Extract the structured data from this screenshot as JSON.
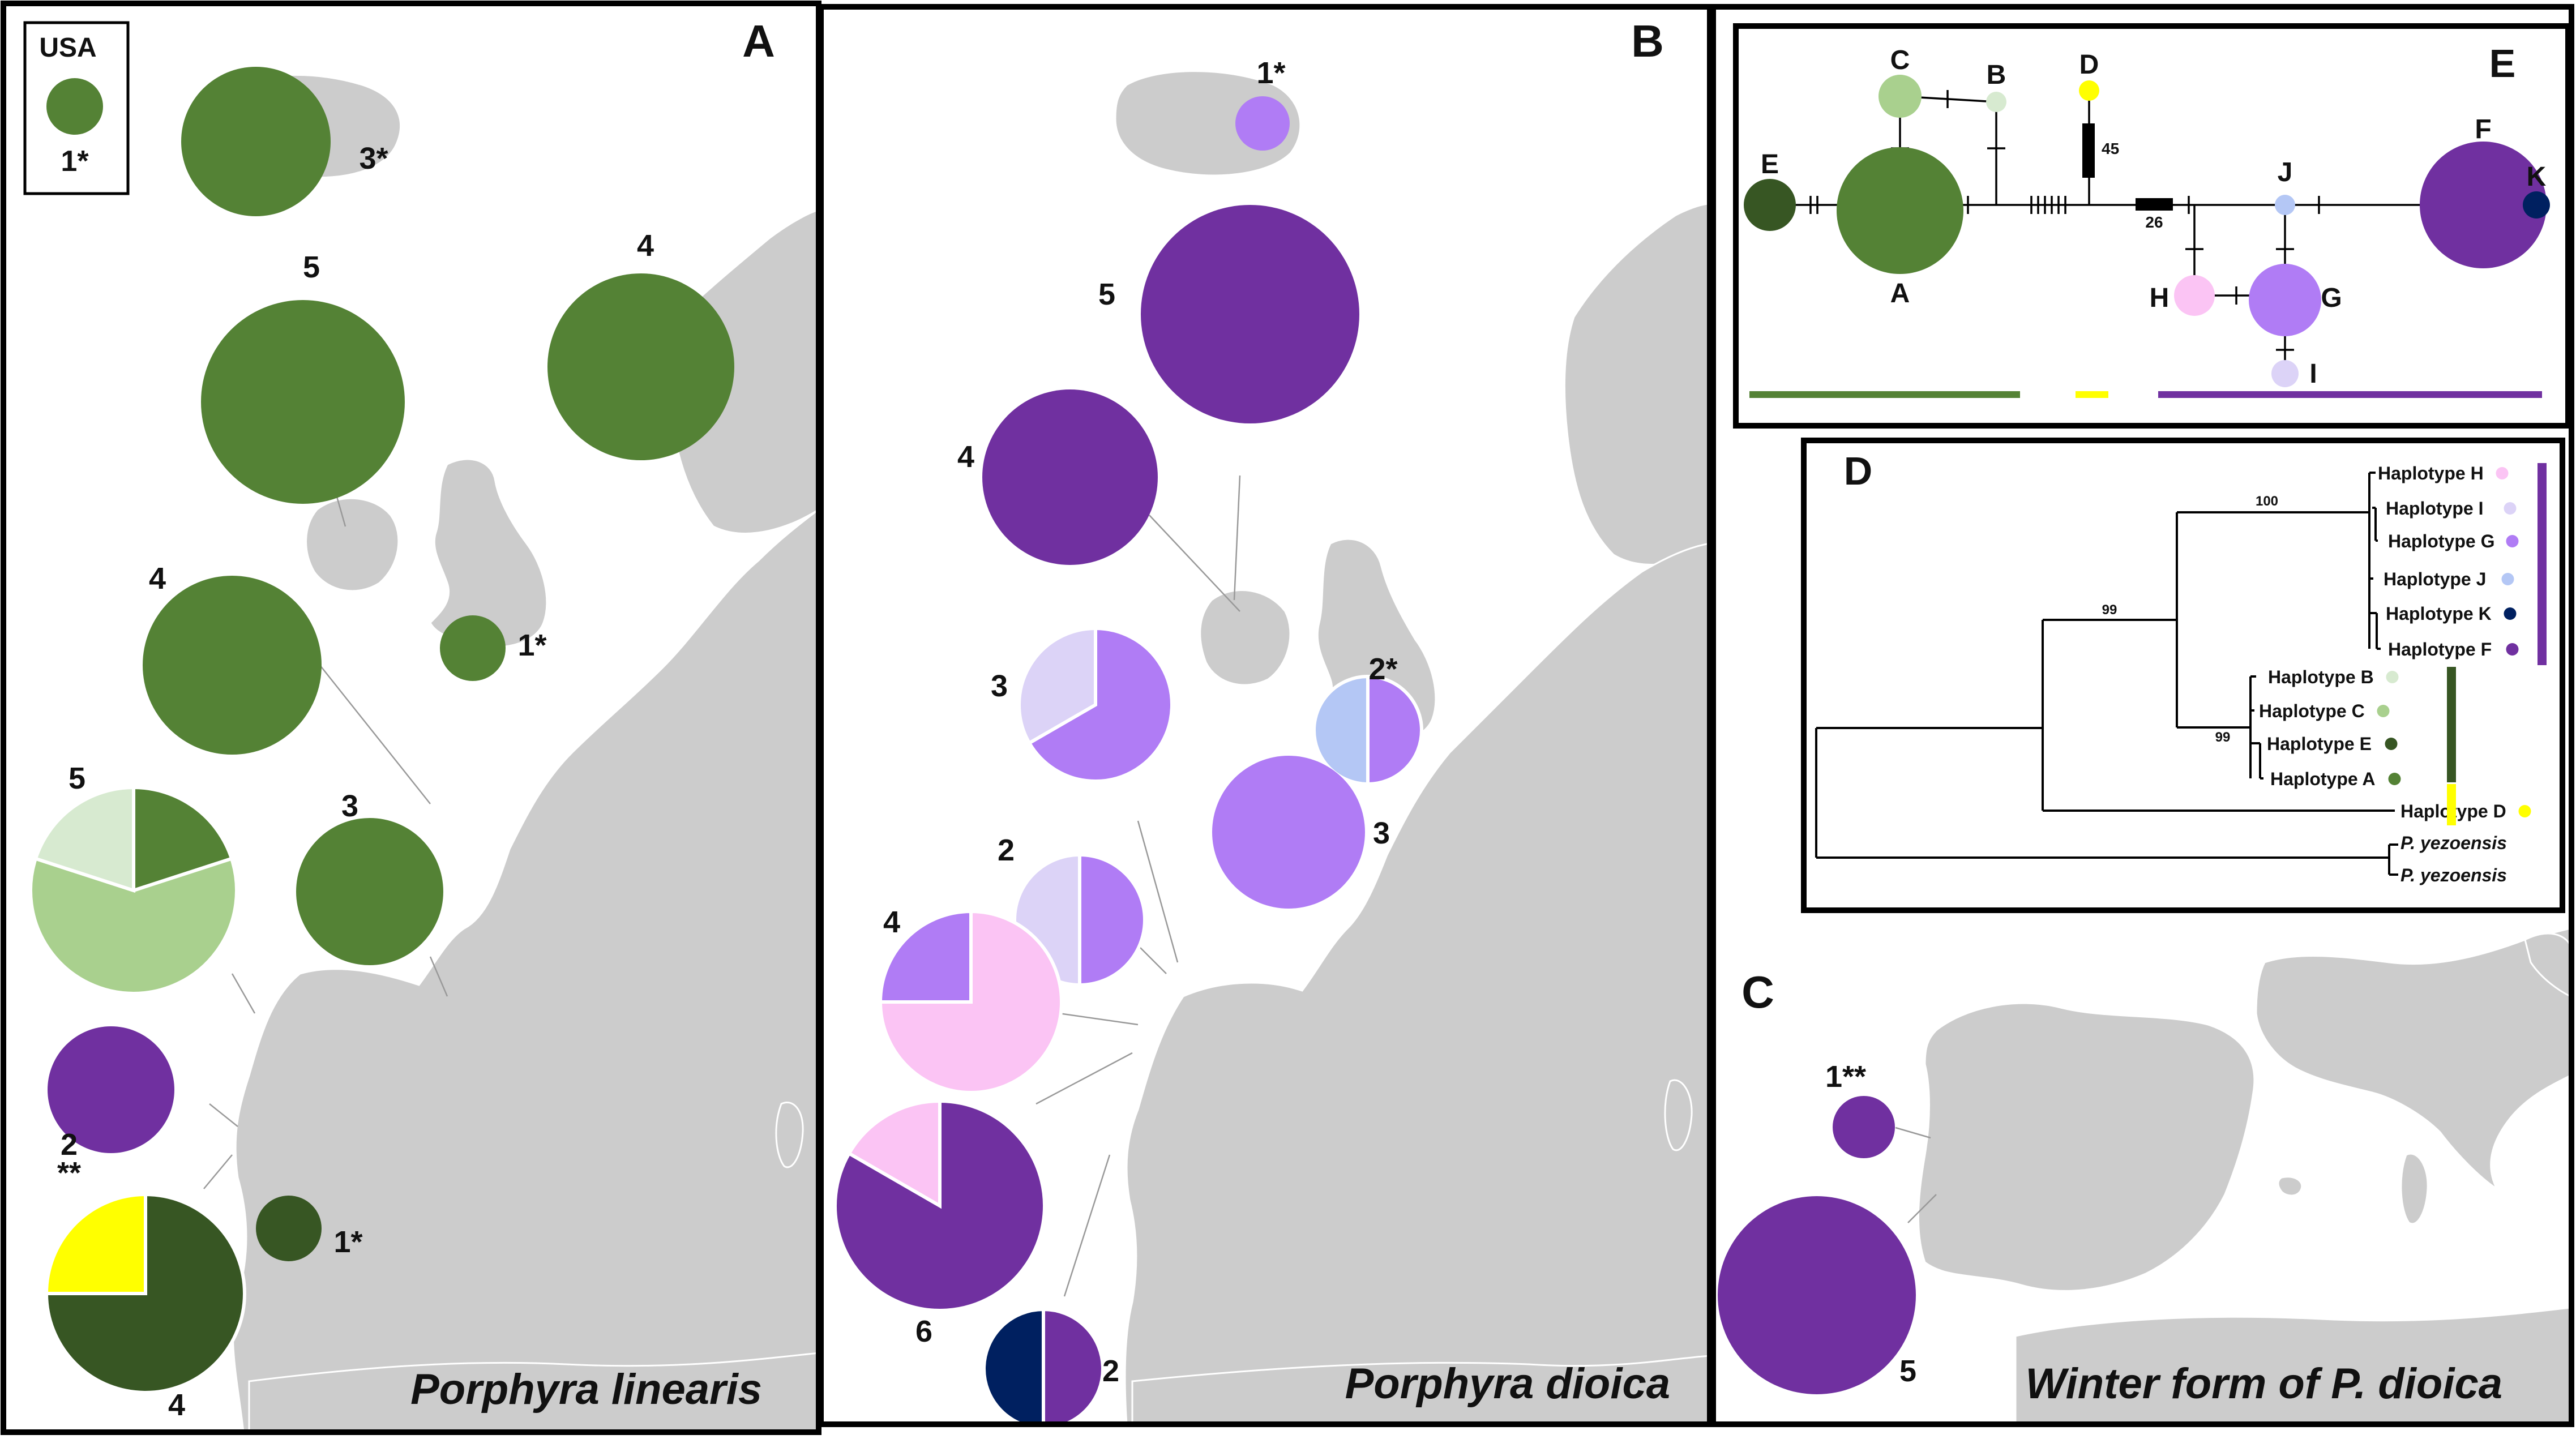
{
  "colors": {
    "A": "#548235",
    "B": "#d7ead0",
    "C": "#a9d08e",
    "D": "#ffff00",
    "E": "#375623",
    "F": "#7030a0",
    "G": "#b07cf5",
    "H": "#fbc4f4",
    "I": "#dcd3f7",
    "J": "#b4c7f5",
    "K": "#002060",
    "map": "#cccccc",
    "border": "#ffffff"
  },
  "panels": [
    {
      "letter": "A",
      "title": "Porphyra linearis"
    },
    {
      "letter": "B",
      "title": "Porphyra dioica"
    },
    {
      "letter": "C",
      "title": "Winter form of P. dioica"
    }
  ],
  "inset": {
    "title": "USA",
    "count": "1*",
    "color": "A"
  },
  "pies_a": [
    {
      "label": "3*",
      "slices": [
        {
          "h": "A",
          "v": 1
        }
      ]
    },
    {
      "label": "5",
      "slices": [
        {
          "h": "A",
          "v": 1
        }
      ]
    },
    {
      "label": "4",
      "slices": [
        {
          "h": "A",
          "v": 1
        }
      ]
    },
    {
      "label": "4",
      "slices": [
        {
          "h": "A",
          "v": 1
        }
      ]
    },
    {
      "label": "1*",
      "slices": [
        {
          "h": "A",
          "v": 1
        }
      ]
    },
    {
      "label": "5",
      "slices": [
        {
          "h": "A",
          "v": 1
        },
        {
          "h": "C",
          "v": 3
        },
        {
          "h": "B",
          "v": 1
        }
      ]
    },
    {
      "label": "3",
      "slices": [
        {
          "h": "A",
          "v": 1
        }
      ]
    },
    {
      "label": "2",
      "sublabel": "**",
      "slices": [
        {
          "h": "F",
          "v": 1
        }
      ]
    },
    {
      "label": "4",
      "slices": [
        {
          "h": "E",
          "v": 3
        },
        {
          "h": "D",
          "v": 1
        }
      ]
    },
    {
      "label": "1*",
      "slices": [
        {
          "h": "E",
          "v": 1
        }
      ]
    }
  ],
  "pies_b": [
    {
      "label": "1*",
      "slices": [
        {
          "h": "G",
          "v": 1
        }
      ]
    },
    {
      "label": "5",
      "slices": [
        {
          "h": "F",
          "v": 1
        }
      ]
    },
    {
      "label": "4",
      "slices": [
        {
          "h": "F",
          "v": 1
        }
      ]
    },
    {
      "label": "3",
      "slices": [
        {
          "h": "G",
          "v": 2
        },
        {
          "h": "I",
          "v": 1
        }
      ]
    },
    {
      "label": "2*",
      "slices": [
        {
          "h": "G",
          "v": 1
        },
        {
          "h": "J",
          "v": 1
        }
      ]
    },
    {
      "label": "3",
      "slices": [
        {
          "h": "G",
          "v": 1
        }
      ]
    },
    {
      "label": "2",
      "slices": [
        {
          "h": "G",
          "v": 1
        },
        {
          "h": "I",
          "v": 1
        }
      ]
    },
    {
      "label": "4",
      "slices": [
        {
          "h": "H",
          "v": 3
        },
        {
          "h": "G",
          "v": 1
        }
      ]
    },
    {
      "label": "6",
      "slices": [
        {
          "h": "F",
          "v": 5
        },
        {
          "h": "H",
          "v": 1
        }
      ]
    },
    {
      "label": "2",
      "slices": [
        {
          "h": "F",
          "v": 1
        },
        {
          "h": "K",
          "v": 1
        }
      ]
    }
  ],
  "pies_c": [
    {
      "label": "1**",
      "slices": [
        {
          "h": "F",
          "v": 1
        }
      ]
    },
    {
      "label": "5",
      "slices": [
        {
          "h": "F",
          "v": 1
        }
      ]
    }
  ],
  "network": {
    "letter": "E",
    "nodes": [
      {
        "label": "A",
        "h": "A"
      },
      {
        "label": "B",
        "h": "B"
      },
      {
        "label": "C",
        "h": "C"
      },
      {
        "label": "D",
        "h": "D"
      },
      {
        "label": "E",
        "h": "E"
      },
      {
        "label": "F",
        "h": "F"
      },
      {
        "label": "G",
        "h": "G"
      },
      {
        "label": "H",
        "h": "H"
      },
      {
        "label": "I",
        "h": "I"
      },
      {
        "label": "J",
        "h": "J"
      },
      {
        "label": "K",
        "h": "K"
      }
    ],
    "steps": [
      "45",
      "26"
    ]
  },
  "tree": {
    "letter": "D",
    "tips": [
      {
        "label": "Haplotype H",
        "h": "H"
      },
      {
        "label": "Haplotype I",
        "h": "I"
      },
      {
        "label": "Haplotype G",
        "h": "G"
      },
      {
        "label": "Haplotype J",
        "h": "J"
      },
      {
        "label": "Haplotype K",
        "h": "K"
      },
      {
        "label": "Haplotype F",
        "h": "F"
      },
      {
        "label": "Haplotype B",
        "h": "B"
      },
      {
        "label": "Haplotype C",
        "h": "C"
      },
      {
        "label": "Haplotype E",
        "h": "E"
      },
      {
        "label": "Haplotype A",
        "h": "A"
      },
      {
        "label": "Haplotype D",
        "h": "D"
      }
    ],
    "outgroup": [
      "P. yezoensis",
      "P. yezoensis"
    ],
    "support": [
      "100",
      "99",
      "99"
    ]
  }
}
